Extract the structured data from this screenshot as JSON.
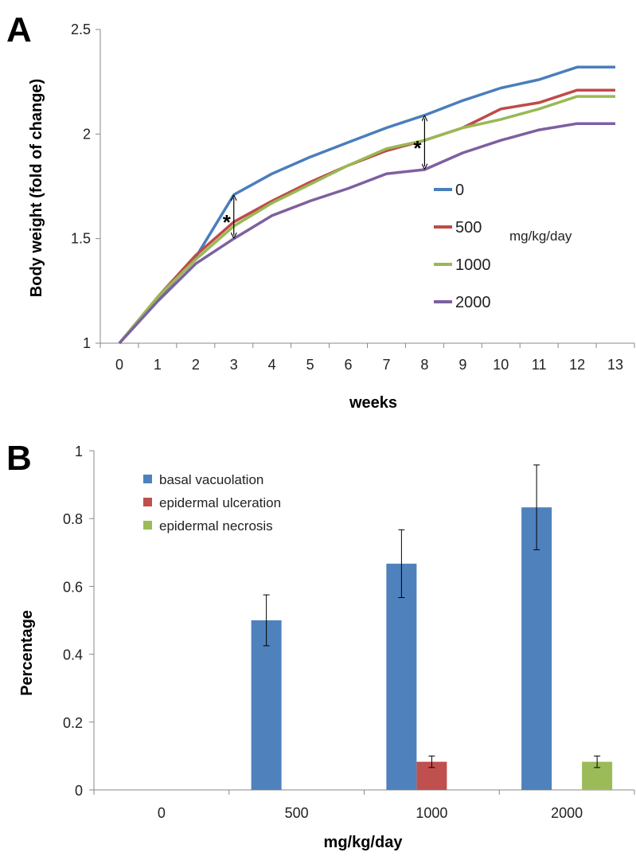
{
  "chart_data": [
    {
      "panel": "A",
      "type": "line",
      "title": "",
      "xlabel": "weeks",
      "ylabel": "Body weight (fold of change)",
      "ylim": [
        1,
        2.5
      ],
      "yticks": [
        "1",
        "1.5",
        "2",
        "2.5"
      ],
      "x": [
        "0",
        "1",
        "2",
        "3",
        "4",
        "5",
        "6",
        "7",
        "8",
        "9",
        "10",
        "11",
        "12",
        "13"
      ],
      "series": [
        {
          "name": "0",
          "color": "#4a7ebb",
          "values": [
            1.0,
            1.21,
            1.41,
            1.71,
            1.81,
            1.89,
            1.96,
            2.03,
            2.09,
            2.16,
            2.22,
            2.26,
            2.32,
            2.32
          ]
        },
        {
          "name": "500",
          "color": "#be4b48",
          "values": [
            1.0,
            1.22,
            1.42,
            1.58,
            1.68,
            1.77,
            1.85,
            1.92,
            1.97,
            2.03,
            2.12,
            2.15,
            2.21,
            2.21
          ]
        },
        {
          "name": "1000",
          "color": "#98b954",
          "values": [
            1.0,
            1.22,
            1.4,
            1.56,
            1.67,
            1.76,
            1.85,
            1.93,
            1.97,
            2.03,
            2.07,
            2.12,
            2.18,
            2.18
          ]
        },
        {
          "name": "2000",
          "color": "#7d60a0",
          "values": [
            1.0,
            1.2,
            1.38,
            1.5,
            1.61,
            1.68,
            1.74,
            1.81,
            1.83,
            1.91,
            1.97,
            2.02,
            2.05,
            2.05
          ]
        }
      ],
      "legend_unit": "mg/kg/day",
      "legend_position": "center-right",
      "annotations": [
        {
          "text": "*",
          "x": "3"
        },
        {
          "text": "*",
          "x": "8"
        }
      ]
    },
    {
      "panel": "B",
      "type": "bar",
      "title": "",
      "xlabel": "mg/kg/day",
      "ylabel": "Percentage",
      "ylim": [
        0,
        1
      ],
      "yticks": [
        "0",
        "0.2",
        "0.4",
        "0.6",
        "0.8",
        "1"
      ],
      "categories": [
        "0",
        "500",
        "1000",
        "2000"
      ],
      "series": [
        {
          "name": "basal vacuolation",
          "color": "#4f81bd",
          "values": [
            0,
            0.5,
            0.667,
            0.833
          ],
          "errors": [
            0,
            0.075,
            0.1,
            0.125
          ]
        },
        {
          "name": "epidermal ulceration",
          "color": "#c0504d",
          "values": [
            0,
            0,
            0.083,
            0
          ],
          "errors": [
            0,
            0,
            0.017,
            0
          ]
        },
        {
          "name": "epidermal necrosis",
          "color": "#9bbb59",
          "values": [
            0,
            0,
            0,
            0.083
          ],
          "errors": [
            0,
            0,
            0,
            0.017
          ]
        }
      ],
      "legend_position": "top-left"
    }
  ]
}
